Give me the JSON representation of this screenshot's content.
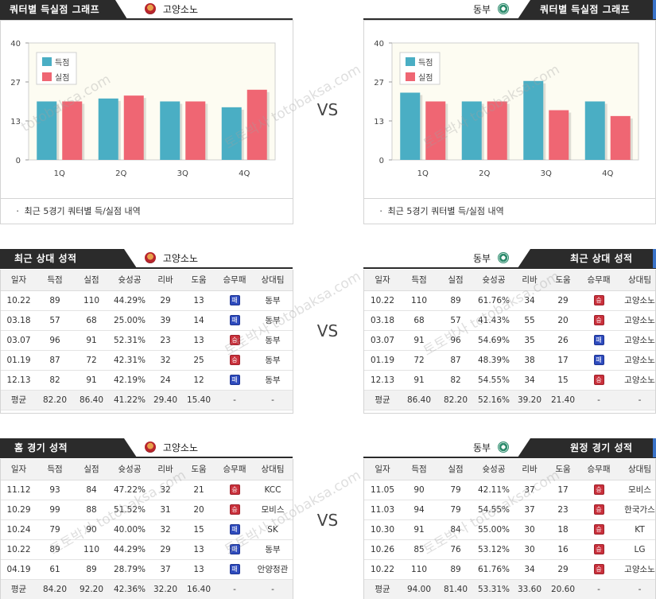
{
  "teams": {
    "left": "고양소노",
    "right": "동부"
  },
  "vs": "VS",
  "quarter_section": {
    "title": "쿼터별 득실점 그래프",
    "footnote": "ㆍ 최근 5경기 쿼터별 득/실점 내역"
  },
  "chart_data": [
    {
      "type": "bar",
      "team": "고양소노",
      "categories": [
        "1Q",
        "2Q",
        "3Q",
        "4Q"
      ],
      "series": [
        {
          "name": "득점",
          "values": [
            20,
            21,
            20,
            18
          ]
        },
        {
          "name": "실점",
          "values": [
            20,
            22,
            20,
            24
          ]
        }
      ],
      "yticks": [
        "0",
        "13",
        "27",
        "40"
      ],
      "ylim": [
        0,
        40
      ],
      "legend": "top-left",
      "grid": false
    },
    {
      "type": "bar",
      "team": "동부",
      "categories": [
        "1Q",
        "2Q",
        "3Q",
        "4Q"
      ],
      "series": [
        {
          "name": "득점",
          "values": [
            23,
            20,
            27,
            20
          ]
        },
        {
          "name": "실점",
          "values": [
            20,
            20,
            17,
            15
          ]
        }
      ],
      "yticks": [
        "0",
        "13",
        "27",
        "40"
      ],
      "ylim": [
        0,
        40
      ],
      "legend": "top-left",
      "grid": false
    }
  ],
  "colors": {
    "score": "#4aaec4",
    "concede": "#ef6673",
    "plot_bg": "#fdfcf2",
    "win": "#c9303b",
    "loss": "#2e4bbd",
    "accent": "#3a73c9"
  },
  "columns": [
    "일자",
    "득점",
    "실점",
    "슛성공",
    "리바",
    "도움",
    "승무패",
    "상대팀"
  ],
  "result_glyph": {
    "win": "승",
    "loss": "패"
  },
  "recent": {
    "title": "최근 상대 성적",
    "left": {
      "rows": [
        [
          "10.22",
          "89",
          "110",
          "44.29%",
          "29",
          "13",
          "loss",
          "동부"
        ],
        [
          "03.18",
          "57",
          "68",
          "25.00%",
          "39",
          "14",
          "loss",
          "동부"
        ],
        [
          "03.07",
          "96",
          "91",
          "52.31%",
          "23",
          "13",
          "win",
          "동부"
        ],
        [
          "01.19",
          "87",
          "72",
          "42.31%",
          "32",
          "25",
          "win",
          "동부"
        ],
        [
          "12.13",
          "82",
          "91",
          "42.19%",
          "24",
          "12",
          "loss",
          "동부"
        ]
      ],
      "avg": [
        "평균",
        "82.20",
        "86.40",
        "41.22%",
        "29.40",
        "15.40",
        "-",
        "-"
      ]
    },
    "right": {
      "rows": [
        [
          "10.22",
          "110",
          "89",
          "61.76%",
          "34",
          "29",
          "win",
          "고양소노"
        ],
        [
          "03.18",
          "68",
          "57",
          "41.43%",
          "55",
          "20",
          "win",
          "고양소노"
        ],
        [
          "03.07",
          "91",
          "96",
          "54.69%",
          "35",
          "26",
          "loss",
          "고양소노"
        ],
        [
          "01.19",
          "72",
          "87",
          "48.39%",
          "38",
          "17",
          "loss",
          "고양소노"
        ],
        [
          "12.13",
          "91",
          "82",
          "54.55%",
          "34",
          "15",
          "win",
          "고양소노"
        ]
      ],
      "avg": [
        "평균",
        "86.40",
        "82.20",
        "52.16%",
        "39.20",
        "21.40",
        "-",
        "-"
      ]
    }
  },
  "home_away": {
    "left_title": "홈 경기 성적",
    "right_title": "원정 경기 성적",
    "left": {
      "rows": [
        [
          "11.12",
          "93",
          "84",
          "47.22%",
          "32",
          "21",
          "win",
          "KCC"
        ],
        [
          "10.29",
          "99",
          "88",
          "51.52%",
          "31",
          "20",
          "win",
          "모비스"
        ],
        [
          "10.24",
          "79",
          "90",
          "40.00%",
          "32",
          "15",
          "loss",
          "SK"
        ],
        [
          "10.22",
          "89",
          "110",
          "44.29%",
          "29",
          "13",
          "loss",
          "동부"
        ],
        [
          "04.19",
          "61",
          "89",
          "28.79%",
          "37",
          "13",
          "loss",
          "안양정관"
        ]
      ],
      "avg": [
        "평균",
        "84.20",
        "92.20",
        "42.36%",
        "32.20",
        "16.40",
        "-",
        "-"
      ]
    },
    "right": {
      "rows": [
        [
          "11.05",
          "90",
          "79",
          "42.11%",
          "37",
          "17",
          "win",
          "모비스"
        ],
        [
          "11.03",
          "94",
          "79",
          "54.55%",
          "37",
          "23",
          "win",
          "한국가스"
        ],
        [
          "10.30",
          "91",
          "84",
          "55.00%",
          "30",
          "18",
          "win",
          "KT"
        ],
        [
          "10.26",
          "85",
          "76",
          "53.12%",
          "30",
          "16",
          "win",
          "LG"
        ],
        [
          "10.22",
          "110",
          "89",
          "61.76%",
          "34",
          "29",
          "win",
          "고양소노"
        ]
      ],
      "avg": [
        "평균",
        "94.00",
        "81.40",
        "53.31%",
        "33.60",
        "20.60",
        "-",
        "-"
      ]
    }
  }
}
